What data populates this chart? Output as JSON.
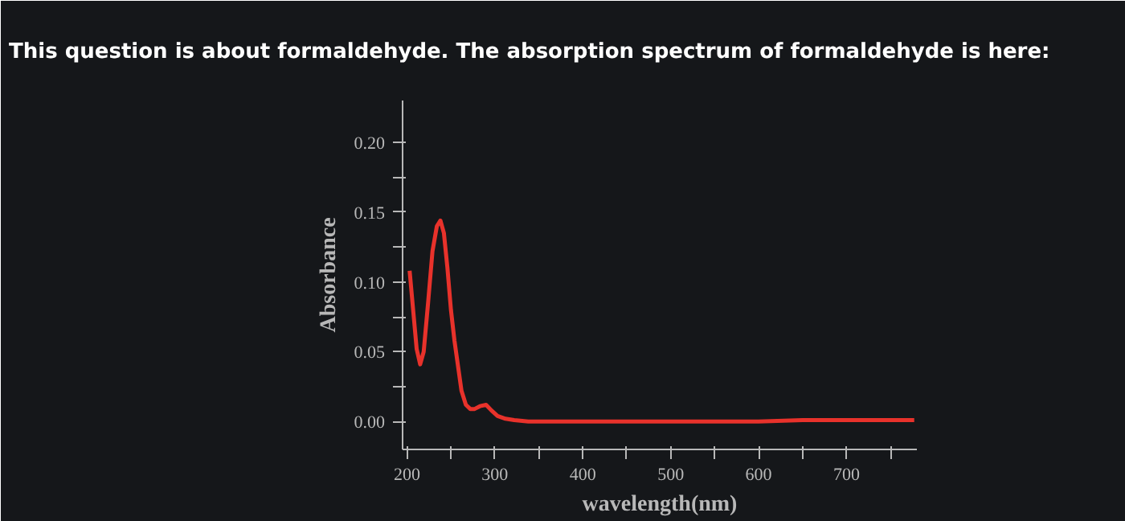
{
  "chart_data": {
    "type": "line",
    "title": "This question is about formaldehyde. The absorption spectrum of formaldehyde is here:",
    "xlabel": "wavelength(nm)",
    "ylabel": "Absorbance",
    "series": [
      {
        "color": "#e8322b",
        "x": [
          203,
          207,
          211,
          215,
          219,
          224,
          229,
          234,
          238,
          242,
          246,
          250,
          254,
          258,
          262,
          267,
          272,
          277,
          283,
          290,
          296,
          303,
          312,
          322,
          338,
          354,
          400,
          450,
          500,
          550,
          600,
          650,
          700,
          740,
          777
        ],
        "values": [
          0.108,
          0.08,
          0.052,
          0.041,
          0.05,
          0.085,
          0.122,
          0.14,
          0.144,
          0.135,
          0.11,
          0.08,
          0.058,
          0.04,
          0.022,
          0.012,
          0.009,
          0.009,
          0.011,
          0.012,
          0.008,
          0.004,
          0.002,
          0.001,
          0.0,
          0.0,
          0.0,
          0.0,
          0.0,
          0.0,
          0.0,
          0.001,
          0.001,
          0.001,
          0.001
        ]
      }
    ],
    "xlim": [
      195,
      780
    ],
    "ylim": [
      -0.02,
      0.23
    ],
    "xticks": [
      200,
      {
        "value": 250,
        "label": null
      },
      300,
      {
        "value": 350,
        "label": null
      },
      400,
      {
        "value": 450,
        "label": null
      },
      500,
      {
        "value": 550,
        "label": null
      },
      600,
      {
        "value": 650,
        "label": null
      },
      700,
      {
        "value": 750,
        "label": null
      }
    ],
    "yticks": [
      {
        "value": 0,
        "label": "0.00"
      },
      {
        "value": 0.025,
        "label": null
      },
      0.05,
      {
        "value": 0.075,
        "label": null
      },
      {
        "value": 0.1,
        "label": "0.10"
      },
      {
        "value": 0.125,
        "label": null
      },
      0.15,
      {
        "value": 0.175,
        "label": null
      },
      {
        "value": 0.2,
        "label": "0.20"
      }
    ],
    "grid": false,
    "marker": "none",
    "line_style": "solid"
  }
}
